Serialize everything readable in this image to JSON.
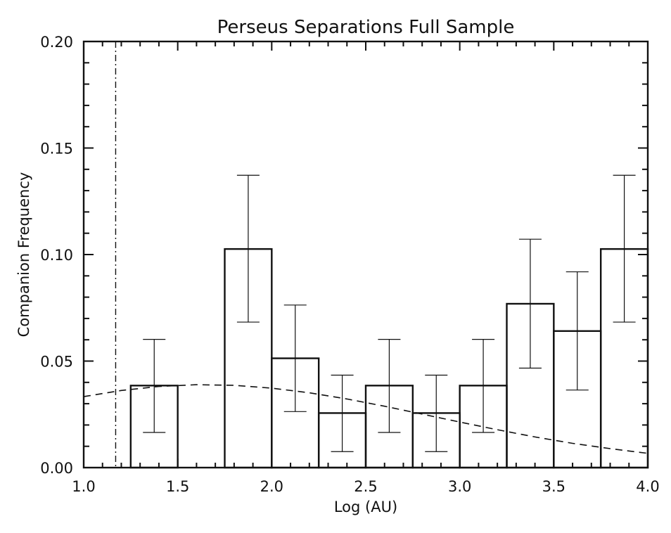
{
  "chart_data": {
    "type": "bar",
    "title": "Perseus Separations Full Sample",
    "xlabel": "Log (AU)",
    "ylabel": "Companion Frequency",
    "xlim": [
      1.0,
      4.0
    ],
    "ylim": [
      0.0,
      0.2
    ],
    "grid": false,
    "x_ticks": [
      "1.0",
      "1.5",
      "2.0",
      "2.5",
      "3.0",
      "3.5",
      "4.0"
    ],
    "y_ticks": [
      "0.00",
      "0.05",
      "0.10",
      "0.15",
      "0.20"
    ],
    "bins": [
      {
        "x0": 1.25,
        "x1": 1.5,
        "value": 0.0385,
        "err_low": 0.0165,
        "err_high": 0.0602
      },
      {
        "x0": 1.5,
        "x1": 1.75,
        "value": 0.0,
        "err_low": null,
        "err_high": null
      },
      {
        "x0": 1.75,
        "x1": 2.0,
        "value": 0.1026,
        "err_low": 0.0683,
        "err_high": 0.1372
      },
      {
        "x0": 2.0,
        "x1": 2.25,
        "value": 0.0513,
        "err_low": 0.0263,
        "err_high": 0.0763
      },
      {
        "x0": 2.25,
        "x1": 2.5,
        "value": 0.0256,
        "err_low": 0.0075,
        "err_high": 0.0434
      },
      {
        "x0": 2.5,
        "x1": 2.75,
        "value": 0.0385,
        "err_low": 0.0165,
        "err_high": 0.0602
      },
      {
        "x0": 2.75,
        "x1": 3.0,
        "value": 0.0256,
        "err_low": 0.0075,
        "err_high": 0.0434
      },
      {
        "x0": 3.0,
        "x1": 3.25,
        "value": 0.0385,
        "err_low": 0.0165,
        "err_high": 0.0602
      },
      {
        "x0": 3.25,
        "x1": 3.5,
        "value": 0.0769,
        "err_low": 0.0467,
        "err_high": 0.1072
      },
      {
        "x0": 3.5,
        "x1": 3.75,
        "value": 0.0641,
        "err_low": 0.0364,
        "err_high": 0.0919
      },
      {
        "x0": 3.75,
        "x1": 4.0,
        "value": 0.1026,
        "err_low": 0.0683,
        "err_high": 0.1372
      }
    ],
    "reference_curve": {
      "style": "dashed",
      "x": [
        1.0,
        1.2,
        1.4,
        1.6,
        1.8,
        2.0,
        2.2,
        2.4,
        2.6,
        2.8,
        3.0,
        3.2,
        3.4,
        3.6,
        3.8,
        4.0
      ],
      "y": [
        0.0333,
        0.0362,
        0.0381,
        0.0389,
        0.0386,
        0.0373,
        0.0351,
        0.0322,
        0.0288,
        0.0251,
        0.0214,
        0.0178,
        0.0144,
        0.0114,
        0.0089,
        0.0067
      ]
    },
    "vertical_line": {
      "x": 1.17,
      "style": "dash-dot"
    }
  }
}
